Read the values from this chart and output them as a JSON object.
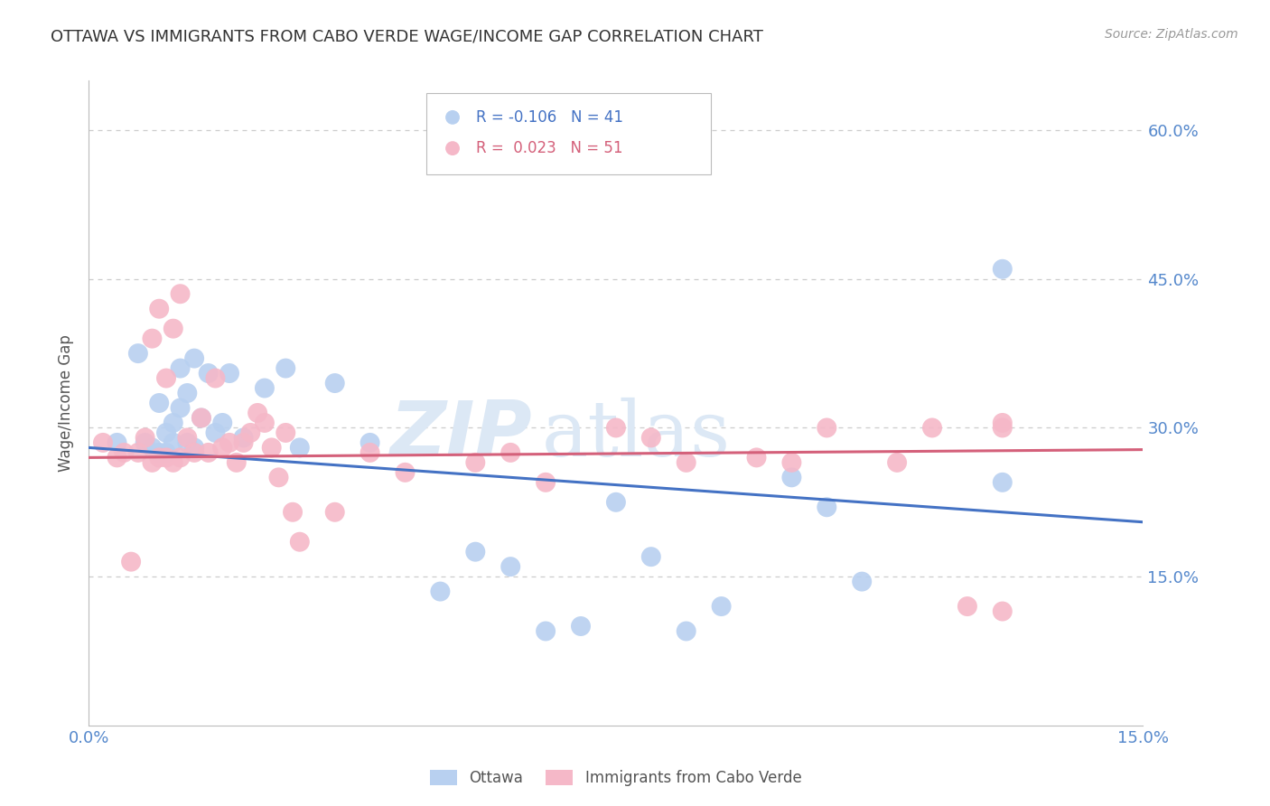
{
  "title": "OTTAWA VS IMMIGRANTS FROM CABO VERDE WAGE/INCOME GAP CORRELATION CHART",
  "source_text": "Source: ZipAtlas.com",
  "ylabel": "Wage/Income Gap",
  "xlim": [
    0.0,
    0.15
  ],
  "ylim": [
    0.0,
    0.65
  ],
  "yticks": [
    0.15,
    0.3,
    0.45,
    0.6
  ],
  "ytick_labels": [
    "15.0%",
    "30.0%",
    "45.0%",
    "60.0%"
  ],
  "xticks": [
    0.0,
    0.05,
    0.1,
    0.15
  ],
  "xtick_labels": [
    "0.0%",
    "",
    "",
    "15.0%"
  ],
  "legend_label1": "Ottawa",
  "legend_label2": "Immigrants from Cabo Verde",
  "watermark": "ZIPatlas",
  "ottawa_color": "#b8d0f0",
  "cabo_color": "#f5b8c8",
  "ottawa_line_color": "#4472c4",
  "cabo_line_color": "#d4607a",
  "title_color": "#333333",
  "axis_label_color": "#555555",
  "tick_color": "#5588cc",
  "grid_color": "#cccccc",
  "R_ottawa": -0.106,
  "N_ottawa": 41,
  "R_cabo": 0.023,
  "N_cabo": 51,
  "ottawa_x": [
    0.004,
    0.007,
    0.008,
    0.009,
    0.01,
    0.01,
    0.011,
    0.011,
    0.012,
    0.012,
    0.013,
    0.013,
    0.014,
    0.014,
    0.015,
    0.015,
    0.016,
    0.017,
    0.018,
    0.019,
    0.02,
    0.022,
    0.025,
    0.028,
    0.03,
    0.035,
    0.04,
    0.05,
    0.055,
    0.06,
    0.065,
    0.07,
    0.075,
    0.08,
    0.085,
    0.09,
    0.1,
    0.105,
    0.11,
    0.13,
    0.13
  ],
  "ottawa_y": [
    0.285,
    0.375,
    0.285,
    0.28,
    0.275,
    0.325,
    0.275,
    0.295,
    0.305,
    0.285,
    0.32,
    0.36,
    0.285,
    0.335,
    0.28,
    0.37,
    0.31,
    0.355,
    0.295,
    0.305,
    0.355,
    0.29,
    0.34,
    0.36,
    0.28,
    0.345,
    0.285,
    0.135,
    0.175,
    0.16,
    0.095,
    0.1,
    0.225,
    0.17,
    0.095,
    0.12,
    0.25,
    0.22,
    0.145,
    0.245,
    0.46
  ],
  "cabo_x": [
    0.002,
    0.004,
    0.005,
    0.006,
    0.007,
    0.008,
    0.009,
    0.009,
    0.01,
    0.01,
    0.011,
    0.011,
    0.012,
    0.012,
    0.013,
    0.013,
    0.014,
    0.015,
    0.016,
    0.017,
    0.018,
    0.019,
    0.02,
    0.021,
    0.022,
    0.023,
    0.024,
    0.025,
    0.026,
    0.027,
    0.028,
    0.029,
    0.03,
    0.035,
    0.04,
    0.045,
    0.055,
    0.06,
    0.065,
    0.075,
    0.08,
    0.085,
    0.095,
    0.1,
    0.105,
    0.115,
    0.12,
    0.125,
    0.13,
    0.13,
    0.13
  ],
  "cabo_y": [
    0.285,
    0.27,
    0.275,
    0.165,
    0.275,
    0.29,
    0.265,
    0.39,
    0.27,
    0.42,
    0.27,
    0.35,
    0.265,
    0.4,
    0.27,
    0.435,
    0.29,
    0.275,
    0.31,
    0.275,
    0.35,
    0.28,
    0.285,
    0.265,
    0.285,
    0.295,
    0.315,
    0.305,
    0.28,
    0.25,
    0.295,
    0.215,
    0.185,
    0.215,
    0.275,
    0.255,
    0.265,
    0.275,
    0.245,
    0.3,
    0.29,
    0.265,
    0.27,
    0.265,
    0.3,
    0.265,
    0.3,
    0.12,
    0.305,
    0.3,
    0.115
  ],
  "trend_ottawa_x0": 0.0,
  "trend_ottawa_y0": 0.28,
  "trend_ottawa_x1": 0.15,
  "trend_ottawa_y1": 0.205,
  "trend_cabo_x0": 0.0,
  "trend_cabo_y0": 0.27,
  "trend_cabo_x1": 0.15,
  "trend_cabo_y1": 0.278
}
